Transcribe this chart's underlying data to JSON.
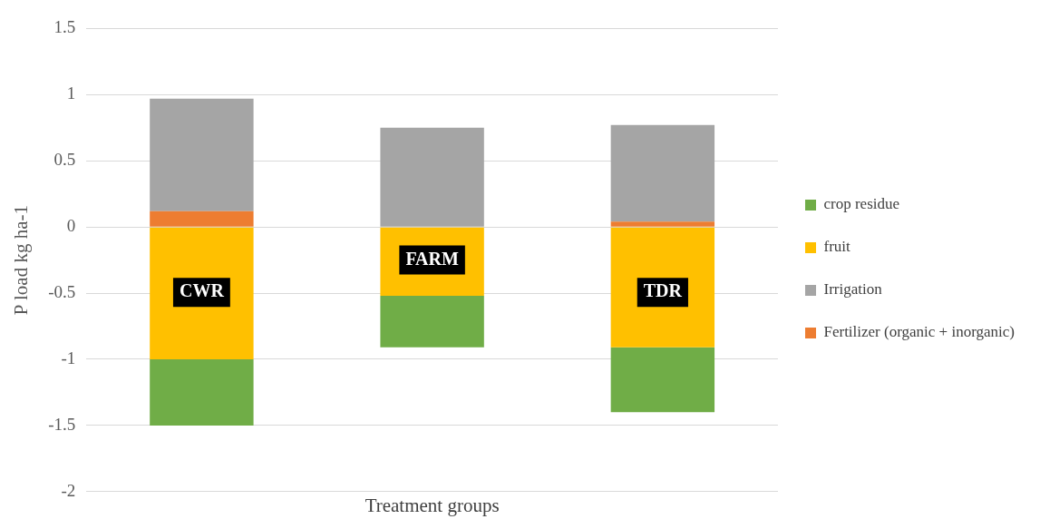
{
  "chart_data": {
    "type": "bar",
    "stacked": true,
    "xlabel": "Treatment groups",
    "ylabel": "P load kg ha-1",
    "categories": [
      null,
      null,
      null
    ],
    "series": [
      {
        "name": "Fertilizer (organic + inorganic)",
        "color": "#ed7d31",
        "values": [
          0.12,
          0,
          0.04
        ]
      },
      {
        "name": "Irrigation",
        "color": "#a5a5a5",
        "values": [
          0.85,
          0.75,
          0.73
        ]
      },
      {
        "name": "fruit",
        "color": "#ffc000",
        "values": [
          -1.0,
          -0.52,
          -0.91
        ]
      },
      {
        "name": "crop residue",
        "color": "#70ad47",
        "values": [
          -0.5,
          -0.39,
          -0.49
        ]
      }
    ],
    "ylim": [
      -2,
      1.5
    ],
    "yticks": [
      -2,
      -1.5,
      -1,
      -0.5,
      0,
      0.5,
      1,
      1.5
    ],
    "grid": "y",
    "legend": "right",
    "tick_labels": "y",
    "annotations": [
      "CWR",
      "FARM",
      "TDR"
    ]
  }
}
